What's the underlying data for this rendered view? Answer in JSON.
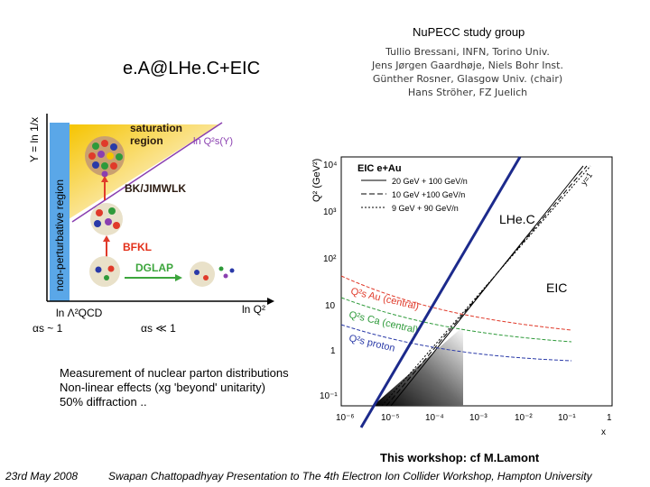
{
  "header": {
    "study_group": "NuPECC study group",
    "title": "e.A@LHe.C+EIC"
  },
  "members": [
    "Tullio Bressani, INFN, Torino Univ.",
    "Jens Jørgen Gaardhøje, Niels Bohr Inst.",
    "Günther Rosner, Glasgow Univ. (chair)",
    "Hans Ströher, FZ Juelich"
  ],
  "left_diagram": {
    "y_axis_label": "Y = ln 1/x",
    "nonpert_label": "non-perturbative region",
    "saturation_line1": "saturation",
    "saturation_line2": "region",
    "qs_label": "ln Q²s(Y)",
    "bk_label": "BK/JIMWLK",
    "bfkl_label": "BFKL",
    "dglap_label": "DGLAP",
    "x_origin_label": "ln Λ²QCD",
    "x_axis_label": "ln Q²",
    "alpha_s_left": "αs ~ 1",
    "alpha_s_right": "αs ≪ 1"
  },
  "right_plot": {
    "y_axis_label": "Q² (GeV²)",
    "x_axis_label": "x",
    "legend_title": "EIC e+Au",
    "legend": [
      "20 GeV + 100 GeV/n",
      "10 GeV +100 GeV/n",
      "9 GeV + 90 GeV/n"
    ],
    "y_ticks": [
      "10⁴",
      "10³",
      "10²",
      "10",
      "1",
      "10⁻¹"
    ],
    "x_ticks": [
      "10⁻⁶",
      "10⁻⁵",
      "10⁻⁴",
      "10⁻³",
      "10⁻²",
      "10⁻¹",
      "1"
    ],
    "curve_labels": [
      "Q²s Au (central)",
      "Q²s Ca (central)",
      "Q²s proton"
    ],
    "y1_label": "y=1",
    "lhec_label": "LHe.C",
    "eic_label": "EIC"
  },
  "bullets": [
    "Measurement of nuclear parton distributions",
    "Non-linear effects (xg 'beyond' unitarity)",
    "50% diffraction .."
  ],
  "footer": {
    "workshop": "This workshop: cf M.Lamont",
    "date": "23rd May 2008",
    "presenter": "Swapan Chattopadhyay Presentation to The 4th Electron Ion Collider Workshop, Hampton University"
  },
  "colors": {
    "nonpert_band": "#5aa7e8",
    "saturation_yellow": "#f5c400",
    "qs_line": "#8a3fb0",
    "red_label": "#e3301a",
    "green_label": "#3ca53c",
    "lhec_line": "#1c2a8c",
    "au_curve": "#e03a2a",
    "ca_curve": "#2e9a3a",
    "proton_curve": "#2a3aa8"
  }
}
